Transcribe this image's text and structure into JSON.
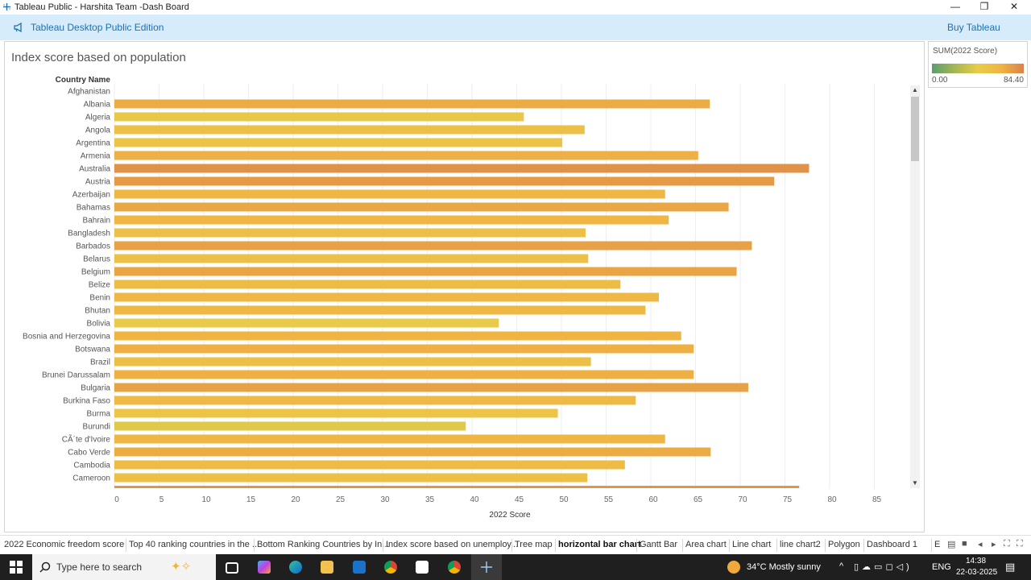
{
  "window": {
    "title": "Tableau Public - Harshita Team -Dash Board",
    "minimize_glyph": "—",
    "restore_glyph": "❐",
    "close_glyph": "✕"
  },
  "banner": {
    "edition": "Tableau Desktop Public Edition",
    "buy": "Buy Tableau"
  },
  "sheet": {
    "title": "Index score based on population"
  },
  "legend": {
    "title": "SUM(2022 Score)",
    "min": "0.00",
    "max": "84.40"
  },
  "chart_data": {
    "type": "bar",
    "orientation": "horizontal",
    "row_header": "Country Name",
    "xlabel": "2022 Score",
    "xlim": [
      0,
      88
    ],
    "xticks": [
      0,
      5,
      10,
      15,
      20,
      25,
      30,
      35,
      40,
      45,
      50,
      55,
      60,
      65,
      70,
      75,
      80,
      85
    ],
    "color_range": [
      0,
      84.4
    ],
    "categories": [
      "Afghanistan",
      "Albania",
      "Algeria",
      "Angola",
      "Argentina",
      "Armenia",
      "Australia",
      "Austria",
      "Azerbaijan",
      "Bahamas",
      "Bahrain",
      "Bangladesh",
      "Barbados",
      "Belarus",
      "Belgium",
      "Belize",
      "Benin",
      "Bhutan",
      "Bolivia",
      "Bosnia and Herzegovina",
      "Botswana",
      "Brazil",
      "Brunei Darussalam",
      "Bulgaria",
      "Burkina Faso",
      "Burma",
      "Burundi",
      "CÃ´te d'Ivoire",
      "Cabo Verde",
      "Cambodia",
      "Cameroon"
    ],
    "values": [
      null,
      66.6,
      45.8,
      52.6,
      50.1,
      65.3,
      77.7,
      73.8,
      61.6,
      68.7,
      62.0,
      52.7,
      71.3,
      53.0,
      69.6,
      56.6,
      60.9,
      59.4,
      43.0,
      63.4,
      64.8,
      53.3,
      64.8,
      70.9,
      58.3,
      49.6,
      39.3,
      61.6,
      66.7,
      57.1,
      52.9
    ]
  },
  "tabs": [
    {
      "label": "2022 Economic  freedom score",
      "active": false
    },
    {
      "label": "Top 40 ranking  countries in the ...",
      "active": false
    },
    {
      "label": "Bottom Ranking  Countries by In...",
      "active": false
    },
    {
      "label": "Index score based on unemploy...",
      "active": false
    },
    {
      "label": "Tree map",
      "active": false
    },
    {
      "label": "horizontal bar chart",
      "active": true
    },
    {
      "label": "Gantt Bar",
      "active": false
    },
    {
      "label": "Area chart",
      "active": false
    },
    {
      "label": "Line chart",
      "active": false
    },
    {
      "label": "line chart2",
      "active": false
    },
    {
      "label": "Polygon",
      "active": false
    },
    {
      "label": "Dashboard 1",
      "active": false
    },
    {
      "label": "E",
      "active": false
    }
  ],
  "taskbar": {
    "search_placeholder": "Type here to search",
    "weather": "34°C  Mostly sunny",
    "lang": "ENG",
    "time": "14:38",
    "date": "22-03-2025"
  }
}
